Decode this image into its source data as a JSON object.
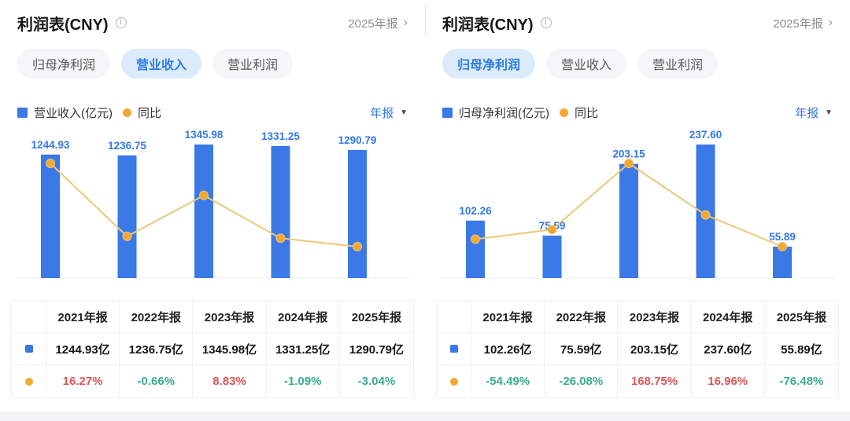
{
  "colors": {
    "bar_blue": "#3b79e6",
    "label_blue": "#3478e7",
    "line_yellow": "#ecc878",
    "marker_orange": "#f2a833",
    "up_red": "#d95757",
    "down_green": "#3cab92",
    "baseline_gray": "#ededed"
  },
  "icons": {
    "info": "i",
    "chevron_right": "›",
    "caret_down": "▼"
  },
  "panels": [
    {
      "title": "利润表(CNY)",
      "period_link": "2025年报",
      "tabs": [
        {
          "id": "net-profit",
          "label": "归母净利润",
          "active": false
        },
        {
          "id": "revenue",
          "label": "营业收入",
          "active": true
        },
        {
          "id": "operating-profit",
          "label": "营业利润",
          "active": false
        }
      ],
      "legend": {
        "bar_label": "营业收入(亿元)",
        "line_label": "同比"
      },
      "period_select": "年报",
      "table": {
        "headers": [
          "2021年报",
          "2022年报",
          "2023年报",
          "2024年报",
          "2025年报"
        ],
        "value_row": [
          "1244.93亿",
          "1236.75亿",
          "1345.98亿",
          "1331.25亿",
          "1290.79亿"
        ],
        "yoy_row": [
          "16.27%",
          "-0.66%",
          "8.83%",
          "-1.09%",
          "-3.04%"
        ]
      }
    },
    {
      "title": "利润表(CNY)",
      "period_link": "2025年报",
      "tabs": [
        {
          "id": "net-profit",
          "label": "归母净利润",
          "active": true
        },
        {
          "id": "revenue",
          "label": "营业收入",
          "active": false
        },
        {
          "id": "operating-profit",
          "label": "营业利润",
          "active": false
        }
      ],
      "legend": {
        "bar_label": "归母净利润(亿元)",
        "line_label": "同比"
      },
      "period_select": "年报",
      "table": {
        "headers": [
          "2021年报",
          "2022年报",
          "2023年报",
          "2024年报",
          "2025年报"
        ],
        "value_row": [
          "102.26亿",
          "75.59亿",
          "203.15亿",
          "237.60亿",
          "55.89亿"
        ],
        "yoy_row": [
          "-54.49%",
          "-26.08%",
          "168.75%",
          "16.96%",
          "-76.48%"
        ]
      }
    }
  ],
  "chart_data": [
    {
      "type": "bar",
      "title": "利润表(CNY) 营业收入 年报",
      "categories": [
        "2021年报",
        "2022年报",
        "2023年报",
        "2024年报",
        "2025年报"
      ],
      "series": [
        {
          "name": "营业收入(亿元)",
          "type": "bar",
          "unit": "亿元",
          "values": [
            1244.93,
            1236.75,
            1345.98,
            1331.25,
            1290.79
          ]
        },
        {
          "name": "同比",
          "type": "line",
          "unit": "%",
          "values": [
            16.27,
            -0.66,
            8.83,
            -1.09,
            -3.04
          ]
        }
      ],
      "value_labels": true,
      "grid": false,
      "legend_position": "top-left"
    },
    {
      "type": "bar",
      "title": "利润表(CNY) 归母净利润 年报",
      "categories": [
        "2021年报",
        "2022年报",
        "2023年报",
        "2024年报",
        "2025年报"
      ],
      "series": [
        {
          "name": "归母净利润(亿元)",
          "type": "bar",
          "unit": "亿元",
          "values": [
            102.26,
            75.59,
            203.15,
            237.6,
            55.89
          ]
        },
        {
          "name": "同比",
          "type": "line",
          "unit": "%",
          "values": [
            -54.49,
            -26.08,
            168.75,
            16.96,
            -76.48
          ]
        }
      ],
      "value_labels": true,
      "grid": false,
      "legend_position": "top-left"
    }
  ]
}
